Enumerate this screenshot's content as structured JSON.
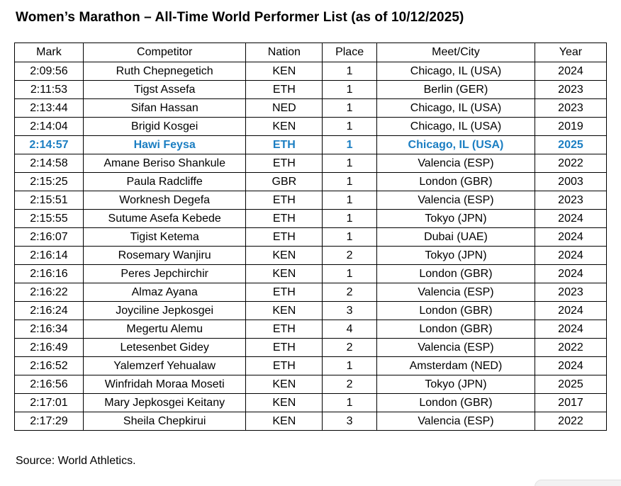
{
  "title": "Women’s Marathon – All-Time World Performer List (as of 10/12/2025)",
  "source": "Source: World Athletics.",
  "colors": {
    "accent_blue": "#1B7EC2",
    "border": "#000000",
    "corner_overlay_fill": "#f2f2f2"
  },
  "table": {
    "columns": [
      "Mark",
      "Competitor",
      "Nation",
      "Place",
      "Meet/City",
      "Year"
    ],
    "column_widths_percent": [
      11.6,
      27.5,
      12.9,
      9.2,
      26.7,
      12.1
    ],
    "highlighted_row_index": 4,
    "rows": [
      [
        "2:09:56",
        "Ruth Chepnegetich",
        "KEN",
        "1",
        "Chicago, IL (USA)",
        "2024"
      ],
      [
        "2:11:53",
        "Tigst Assefa",
        "ETH",
        "1",
        "Berlin (GER)",
        "2023"
      ],
      [
        "2:13:44",
        "Sifan Hassan",
        "NED",
        "1",
        "Chicago, IL (USA)",
        "2023"
      ],
      [
        "2:14:04",
        "Brigid Kosgei",
        "KEN",
        "1",
        "Chicago, IL (USA)",
        "2019"
      ],
      [
        "2:14:57",
        "Hawi Feysa",
        "ETH",
        "1",
        "Chicago, IL (USA)",
        "2025"
      ],
      [
        "2:14:58",
        "Amane Beriso Shankule",
        "ETH",
        "1",
        "Valencia (ESP)",
        "2022"
      ],
      [
        "2:15:25",
        "Paula Radcliffe",
        "GBR",
        "1",
        "London (GBR)",
        "2003"
      ],
      [
        "2:15:51",
        "Worknesh Degefa",
        "ETH",
        "1",
        "Valencia (ESP)",
        "2023"
      ],
      [
        "2:15:55",
        "Sutume Asefa Kebede",
        "ETH",
        "1",
        "Tokyo (JPN)",
        "2024"
      ],
      [
        "2:16:07",
        "Tigist Ketema",
        "ETH",
        "1",
        "Dubai (UAE)",
        "2024"
      ],
      [
        "2:16:14",
        "Rosemary Wanjiru",
        "KEN",
        "2",
        "Tokyo (JPN)",
        "2024"
      ],
      [
        "2:16:16",
        "Peres Jepchirchir",
        "KEN",
        "1",
        "London (GBR)",
        "2024"
      ],
      [
        "2:16:22",
        "Almaz Ayana",
        "ETH",
        "2",
        "Valencia (ESP)",
        "2023"
      ],
      [
        "2:16:24",
        "Joyciline Jepkosgei",
        "KEN",
        "3",
        "London (GBR)",
        "2024"
      ],
      [
        "2:16:34",
        "Megertu Alemu",
        "ETH",
        "4",
        "London (GBR)",
        "2024"
      ],
      [
        "2:16:49",
        "Letesenbet Gidey",
        "ETH",
        "2",
        "Valencia (ESP)",
        "2022"
      ],
      [
        "2:16:52",
        "Yalemzerf Yehualaw",
        "ETH",
        "1",
        "Amsterdam (NED)",
        "2024"
      ],
      [
        "2:16:56",
        "Winfridah Moraa Moseti",
        "KEN",
        "2",
        "Tokyo (JPN)",
        "2025"
      ],
      [
        "2:17:01",
        "Mary Jepkosgei Keitany",
        "KEN",
        "1",
        "London (GBR)",
        "2017"
      ],
      [
        "2:17:29",
        "Sheila Chepkirui",
        "KEN",
        "3",
        "Valencia (ESP)",
        "2022"
      ]
    ],
    "cell_names": [
      "cell-mark",
      "cell-competitor",
      "cell-nation",
      "cell-place",
      "cell-meet-city",
      "cell-year"
    ]
  }
}
